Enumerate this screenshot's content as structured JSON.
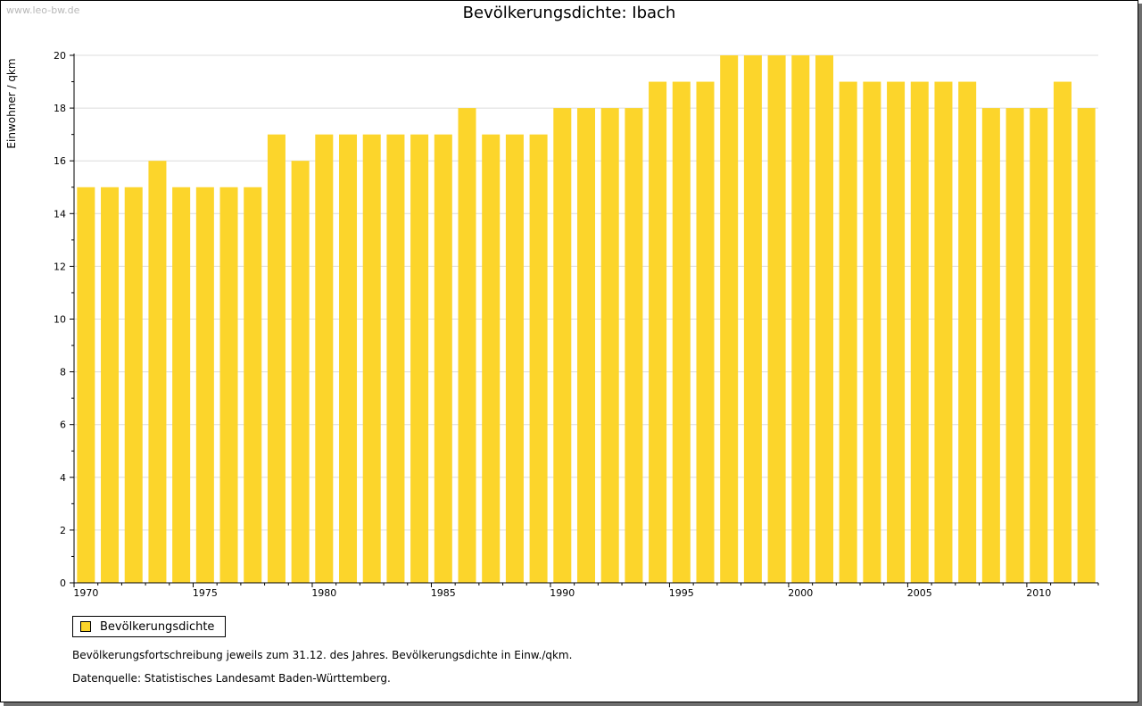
{
  "watermark": "www.leo-bw.de",
  "title": "Bevölkerungsdichte: Ibach",
  "legend": {
    "label": "Bevölkerungsdichte"
  },
  "notes": {
    "line1": "Bevölkerungsfortschreibung jeweils zum 31.12. des Jahres. Bevölkerungsdichte in Einw./qkm.",
    "line2": "Datenquelle: Statistisches Landesamt Baden-Württemberg."
  },
  "colors": {
    "bar": "#fcd52b",
    "grid": "#dcdcdc",
    "axis": "#000000"
  },
  "chart_data": {
    "type": "bar",
    "title": "Bevölkerungsdichte: Ibach",
    "xlabel": "",
    "ylabel": "Einwohner / qkm",
    "ylim": [
      0,
      20
    ],
    "yticks": [
      0,
      2,
      4,
      6,
      8,
      10,
      12,
      14,
      16,
      18,
      20
    ],
    "xtick_labels": [
      "1970",
      "1975",
      "1980",
      "1985",
      "1990",
      "1995",
      "2000",
      "2005",
      "2010"
    ],
    "grid": true,
    "legend_position": "bottom-left",
    "categories": [
      1970,
      1971,
      1972,
      1973,
      1974,
      1975,
      1976,
      1977,
      1978,
      1979,
      1980,
      1981,
      1982,
      1983,
      1984,
      1985,
      1986,
      1987,
      1988,
      1989,
      1990,
      1991,
      1992,
      1993,
      1994,
      1995,
      1996,
      1997,
      1998,
      1999,
      2000,
      2001,
      2002,
      2003,
      2004,
      2005,
      2006,
      2007,
      2008,
      2009,
      2010,
      2011,
      2012
    ],
    "series": [
      {
        "name": "Bevölkerungsdichte",
        "values": [
          15,
          15,
          15,
          16,
          15,
          15,
          15,
          15,
          17,
          16,
          17,
          17,
          17,
          17,
          17,
          17,
          18,
          17,
          17,
          17,
          18,
          18,
          18,
          18,
          19,
          19,
          19,
          20,
          20,
          20,
          20,
          20,
          19,
          19,
          19,
          19,
          19,
          19,
          18,
          18,
          18,
          19,
          18
        ]
      }
    ]
  }
}
